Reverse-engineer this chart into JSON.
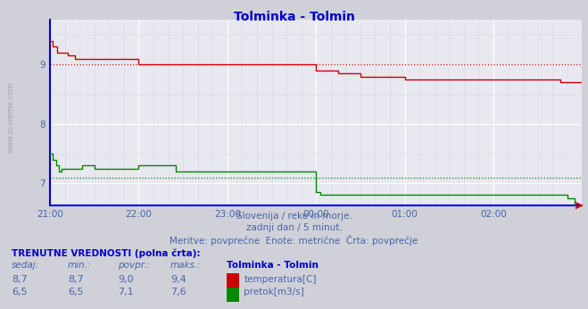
{
  "title": "Tolminka - Tolmin",
  "title_color": "#0000cc",
  "bg_color": "#d0d0d8",
  "plot_bg_color": "#e8e8f0",
  "grid_color_major": "#ffffff",
  "grid_color_minor": "#e0e0e8",
  "subtitle_lines": [
    "Slovenija / reke in morje.",
    "zadnji dan / 5 minut.",
    "Meritve: povprečne  Enote: metrične  Črta: povprečje"
  ],
  "tick_color": "#4466aa",
  "watermark": "www.si-vreme.com",
  "xtick_labels": [
    "21:00",
    "22:00",
    "23:00",
    "00:00",
    "01:00",
    "02:00"
  ],
  "ylim": [
    6.625,
    9.75
  ],
  "yticks": [
    7.0,
    8.0,
    9.0
  ],
  "temp_color": "#cc0000",
  "flow_color": "#008800",
  "dotted_temp_avg": 9.0,
  "dotted_flow_avg": 7.1,
  "axis_line_color": "#0000dd",
  "arrow_color": "#cc0000",
  "bottom_text_color": "#4466aa",
  "table_header": "TRENUTNE VREDNOSTI (polna črta):",
  "table_cols": [
    "sedaj:",
    "min.:",
    "povpr.:",
    "maks.:"
  ],
  "table_row1": [
    "8,7",
    "8,7",
    "9,0",
    "9,4"
  ],
  "table_row2": [
    "6,5",
    "6,5",
    "7,1",
    "7,6"
  ],
  "legend_labels": [
    "temperatura[C]",
    "pretok[m3/s]"
  ],
  "legend_colors": [
    "#cc0000",
    "#008800"
  ],
  "station_label": "Tolminka - Tolmin",
  "side_label": "www.si-vreme.com",
  "n_points": 361,
  "hour_step": 60
}
